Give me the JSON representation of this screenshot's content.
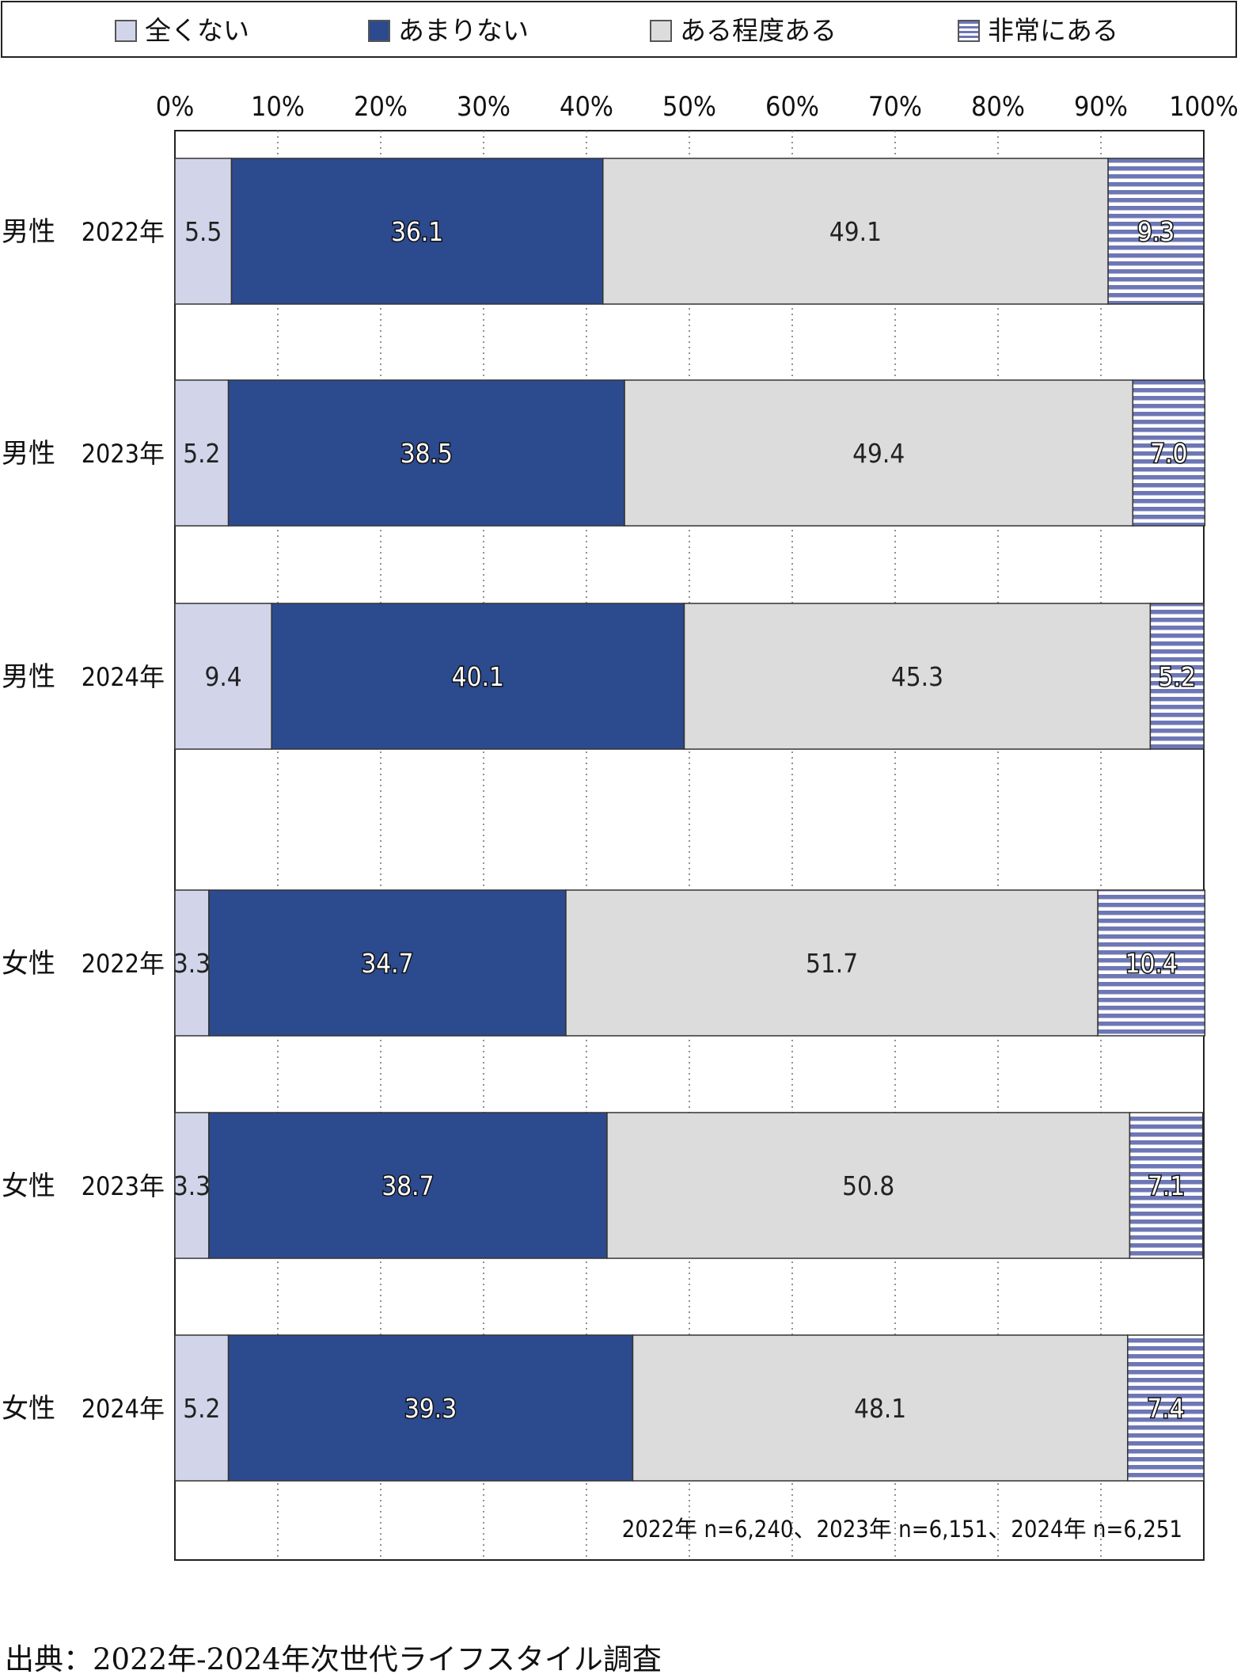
{
  "chart_data": {
    "type": "bar",
    "orientation": "horizontal",
    "stacked": "percent",
    "x_ticks": [
      "0%",
      "10%",
      "20%",
      "30%",
      "40%",
      "50%",
      "60%",
      "70%",
      "80%",
      "90%",
      "100%"
    ],
    "xlim": [
      0,
      100
    ],
    "grid": "vertical dotted",
    "legend_position": "top",
    "rows": [
      {
        "group": "男性",
        "year": "2022年"
      },
      {
        "group": "男性",
        "year": "2023年"
      },
      {
        "group": "男性",
        "year": "2024年"
      },
      {
        "group": "女性",
        "year": "2022年"
      },
      {
        "group": "女性",
        "year": "2023年"
      },
      {
        "group": "女性",
        "year": "2024年"
      }
    ],
    "series": [
      {
        "name": "全くない",
        "color": "#d2d5ea",
        "pattern": "solid",
        "label_style": "plain",
        "values": [
          5.5,
          5.2,
          9.4,
          3.3,
          3.3,
          5.2
        ],
        "labels": [
          "5.5",
          "5.2",
          "9.4",
          "3.3",
          "3.3",
          "5.2"
        ]
      },
      {
        "name": "あまりない",
        "color": "#2c4a8e",
        "pattern": "solid",
        "label_style": "outlined",
        "values": [
          36.1,
          38.5,
          40.1,
          34.7,
          38.7,
          39.3
        ],
        "labels": [
          "36.1",
          "38.5",
          "40.1",
          "34.7",
          "38.7",
          "39.3"
        ]
      },
      {
        "name": "ある程度ある",
        "color": "#dcdcdc",
        "pattern": "solid",
        "label_style": "plain",
        "values": [
          49.1,
          49.4,
          45.3,
          51.7,
          50.8,
          48.1
        ],
        "labels": [
          "49.1",
          "49.4",
          "45.3",
          "51.7",
          "50.8",
          "48.1"
        ]
      },
      {
        "name": "非常にある",
        "color": "#6d77b5",
        "pattern": "stripes",
        "label_style": "outlined",
        "values": [
          9.3,
          7.0,
          5.2,
          10.4,
          7.1,
          7.4
        ],
        "labels": [
          "9.3",
          "7.0",
          "5.2",
          "10.4",
          "7.1",
          "7.4"
        ]
      }
    ],
    "annotation": "2022年 n=6,240、2023年 n=6,151、2024年 n=6,251"
  },
  "source": "出典：2022年-2024年次世代ライフスタイル調査"
}
